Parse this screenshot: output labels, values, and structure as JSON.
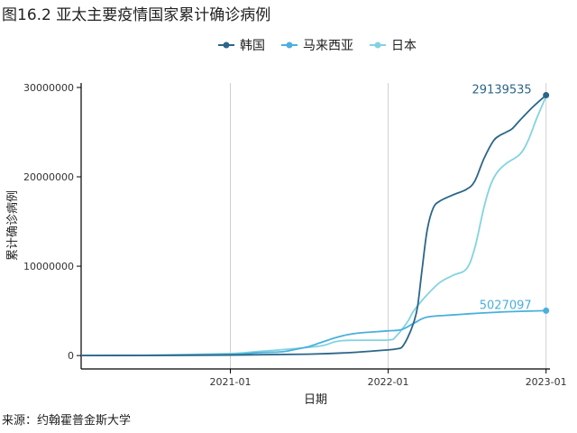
{
  "title": "图16.2 亚太主要疫情国家累计确诊病例",
  "source": "来源：约翰霍普金斯大学",
  "chart_data": {
    "type": "line",
    "xlabel": "日期",
    "ylabel": "累计确诊病例",
    "x_domain": [
      "2020-01-22",
      "2023-01-10"
    ],
    "ylim": [
      -1500000,
      30500000
    ],
    "x_ticks": [
      "2021-01",
      "2022-01",
      "2023-01"
    ],
    "y_ticks": [
      0,
      10000000,
      20000000,
      30000000
    ],
    "y_tick_labels": [
      "0",
      "10000000",
      "20000000",
      "30000000"
    ],
    "grid": "vertical-major",
    "legend_position": "top",
    "series": [
      {
        "name": "韩国",
        "color": "#2b6689",
        "end_label": "29139535",
        "points": [
          [
            "2020-01-22",
            0
          ],
          [
            "2020-06-01",
            11000
          ],
          [
            "2020-12-31",
            60000
          ],
          [
            "2021-06-30",
            155000
          ],
          [
            "2021-10-01",
            320000
          ],
          [
            "2021-12-31",
            630000
          ],
          [
            "2022-01-20",
            750000
          ],
          [
            "2022-02-01",
            900000
          ],
          [
            "2022-02-15",
            2000000
          ],
          [
            "2022-03-01",
            3700000
          ],
          [
            "2022-03-10",
            5500000
          ],
          [
            "2022-03-20",
            9500000
          ],
          [
            "2022-04-01",
            14000000
          ],
          [
            "2022-04-15",
            16500000
          ],
          [
            "2022-05-01",
            17300000
          ],
          [
            "2022-06-01",
            18000000
          ],
          [
            "2022-07-01",
            18600000
          ],
          [
            "2022-07-20",
            19500000
          ],
          [
            "2022-08-10",
            22000000
          ],
          [
            "2022-09-01",
            24000000
          ],
          [
            "2022-09-15",
            24600000
          ],
          [
            "2022-10-01",
            25000000
          ],
          [
            "2022-10-15",
            25400000
          ],
          [
            "2022-11-01",
            26300000
          ],
          [
            "2022-12-01",
            27800000
          ],
          [
            "2023-01-01",
            29139535
          ]
        ]
      },
      {
        "name": "马来西亚",
        "color": "#4ab0dd",
        "end_label": "5027097",
        "points": [
          [
            "2020-01-22",
            0
          ],
          [
            "2020-06-01",
            8000
          ],
          [
            "2020-12-31",
            115000
          ],
          [
            "2021-03-01",
            310000
          ],
          [
            "2021-05-01",
            420000
          ],
          [
            "2021-06-01",
            700000
          ],
          [
            "2021-07-01",
            1000000
          ],
          [
            "2021-08-01",
            1500000
          ],
          [
            "2021-09-01",
            2000000
          ],
          [
            "2021-10-01",
            2350000
          ],
          [
            "2021-11-01",
            2550000
          ],
          [
            "2021-12-31",
            2760000
          ],
          [
            "2022-02-01",
            2900000
          ],
          [
            "2022-03-01",
            3600000
          ],
          [
            "2022-04-01",
            4300000
          ],
          [
            "2022-06-01",
            4550000
          ],
          [
            "2022-08-01",
            4750000
          ],
          [
            "2022-10-01",
            4900000
          ],
          [
            "2023-01-01",
            5027097
          ]
        ]
      },
      {
        "name": "日本",
        "color": "#82d3e0",
        "points": [
          [
            "2020-01-22",
            0
          ],
          [
            "2020-06-01",
            17000
          ],
          [
            "2020-12-31",
            230000
          ],
          [
            "2021-03-01",
            430000
          ],
          [
            "2021-06-01",
            780000
          ],
          [
            "2021-08-01",
            1100000
          ],
          [
            "2021-09-01",
            1550000
          ],
          [
            "2021-10-01",
            1700000
          ],
          [
            "2021-12-31",
            1730000
          ],
          [
            "2022-01-20",
            2200000
          ],
          [
            "2022-02-15",
            3800000
          ],
          [
            "2022-03-01",
            5000000
          ],
          [
            "2022-04-01",
            6800000
          ],
          [
            "2022-05-01",
            8200000
          ],
          [
            "2022-06-01",
            9000000
          ],
          [
            "2022-07-01",
            9700000
          ],
          [
            "2022-07-20",
            12000000
          ],
          [
            "2022-08-10",
            16500000
          ],
          [
            "2022-08-25",
            19000000
          ],
          [
            "2022-09-10",
            20500000
          ],
          [
            "2022-10-01",
            21500000
          ],
          [
            "2022-11-01",
            22500000
          ],
          [
            "2022-11-20",
            24000000
          ],
          [
            "2022-12-10",
            26500000
          ],
          [
            "2023-01-01",
            29000000
          ]
        ]
      }
    ]
  }
}
